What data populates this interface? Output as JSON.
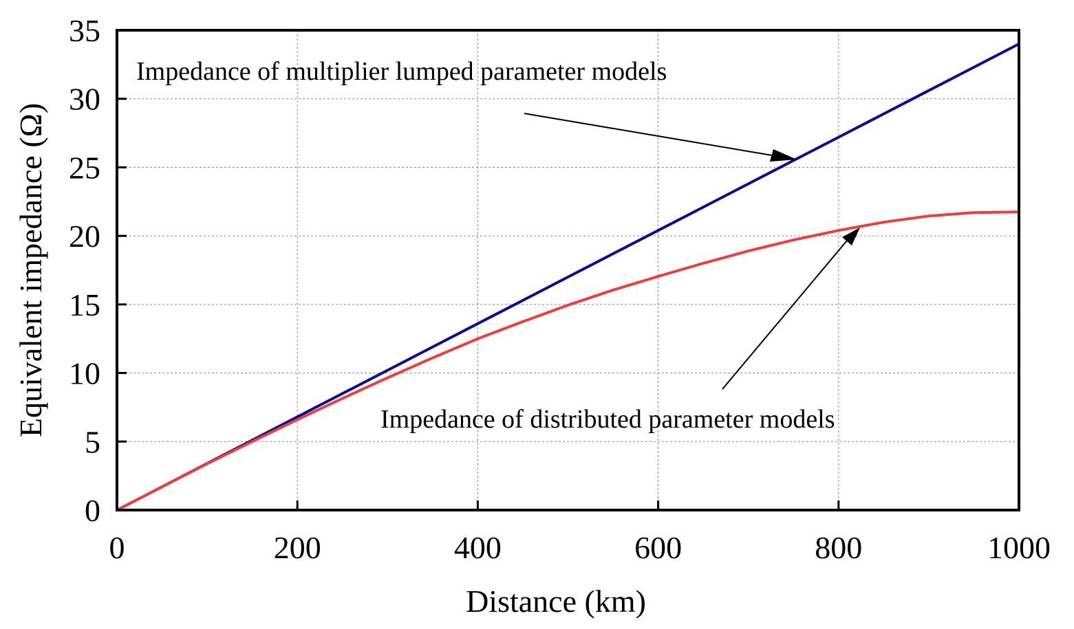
{
  "chart_data": {
    "type": "line",
    "title": "",
    "xlabel": "Distance (km)",
    "ylabel": "Equivalent impedance (Ω)",
    "xlim": [
      0,
      1000
    ],
    "ylim": [
      0,
      35
    ],
    "xticks": [
      0,
      200,
      400,
      600,
      800,
      1000
    ],
    "yticks": [
      0,
      5,
      10,
      15,
      20,
      25,
      30,
      35
    ],
    "grid": true,
    "series": [
      {
        "name": "Impedance of multiplier lumped parameter models",
        "color": "#0b0b9a",
        "x": [
          0,
          100,
          200,
          300,
          400,
          500,
          600,
          700,
          800,
          900,
          1000
        ],
        "y": [
          0,
          3.4,
          6.8,
          10.2,
          13.6,
          17.0,
          20.4,
          23.8,
          27.2,
          30.6,
          34.0
        ]
      },
      {
        "name": "Impedance of distributed parameter models",
        "color": "#f23c3c",
        "x": [
          0,
          50,
          100,
          150,
          200,
          250,
          300,
          350,
          400,
          450,
          500,
          550,
          600,
          650,
          700,
          750,
          800,
          850,
          900,
          950,
          1000
        ],
        "y": [
          0,
          1.7,
          3.38,
          5.0,
          6.6,
          8.15,
          9.65,
          11.1,
          12.5,
          13.75,
          14.95,
          16.05,
          17.05,
          18.0,
          18.9,
          19.7,
          20.4,
          21.0,
          21.45,
          21.7,
          21.75
        ]
      }
    ],
    "annotations": [
      {
        "text": "Impedance of multiplier lumped parameter models",
        "target_series": 0
      },
      {
        "text": "Impedance of distributed parameter models",
        "target_series": 1
      }
    ]
  }
}
